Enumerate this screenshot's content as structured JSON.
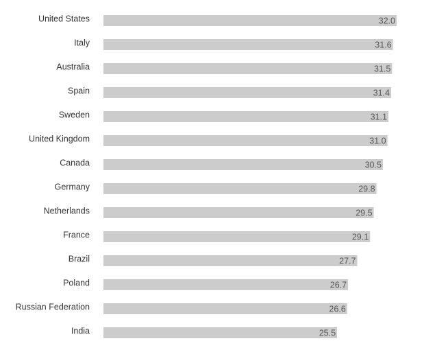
{
  "chart_data": {
    "type": "bar",
    "orientation": "horizontal",
    "categories": [
      "United States",
      "Italy",
      "Australia",
      "Spain",
      "Sweden",
      "United Kingdom",
      "Canada",
      "Germany",
      "Netherlands",
      "France",
      "Brazil",
      "Poland",
      "Russian Federation",
      "India"
    ],
    "values": [
      32.0,
      31.6,
      31.5,
      31.4,
      31.1,
      31.0,
      30.5,
      29.8,
      29.5,
      29.1,
      27.7,
      26.7,
      26.6,
      25.5
    ],
    "value_labels": [
      "32.0",
      "31.6",
      "31.5",
      "31.4",
      "31.1",
      "31.0",
      "30.5",
      "29.8",
      "29.5",
      "29.1",
      "27.7",
      "26.7",
      "26.6",
      "25.5"
    ],
    "color": "#cccccc"
  }
}
